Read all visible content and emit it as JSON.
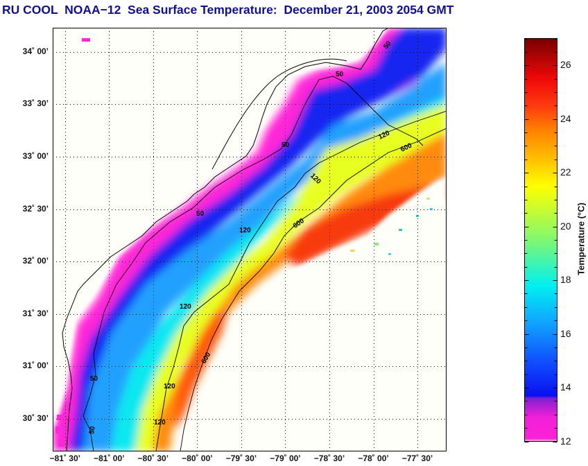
{
  "title": "RU COOL  NOAA−12  Sea Surface Temperature:  December 21, 2003 2054 GMT",
  "map": {
    "latitude_ticks": [
      {
        "value": 34.0,
        "label": "34˚ 00’"
      },
      {
        "value": 33.5,
        "label": "33˚ 30’"
      },
      {
        "value": 33.0,
        "label": "33˚ 00’"
      },
      {
        "value": 32.5,
        "label": "32˚ 30’"
      },
      {
        "value": 32.0,
        "label": "32˚ 00’"
      },
      {
        "value": 31.5,
        "label": "31˚ 30’"
      },
      {
        "value": 31.0,
        "label": "31˚ 00’"
      },
      {
        "value": 30.5,
        "label": "30˚ 30’"
      }
    ],
    "longitude_ticks": [
      {
        "value": -81.5,
        "label": "−81˚ 30’"
      },
      {
        "value": -81.0,
        "label": "−81˚ 00’"
      },
      {
        "value": -80.5,
        "label": "−80˚ 30’"
      },
      {
        "value": -80.0,
        "label": "−80˚ 00’"
      },
      {
        "value": -79.5,
        "label": "−79˚ 30’"
      },
      {
        "value": -79.0,
        "label": "−79˚ 00’"
      },
      {
        "value": -78.5,
        "label": "−78˚ 30’"
      },
      {
        "value": -78.0,
        "label": "−78˚ 00’"
      },
      {
        "value": -77.5,
        "label": "−77˚ 30’"
      }
    ],
    "lat_range": [
      30.19,
      34.23
    ],
    "lon_range": [
      -81.64,
      -77.17
    ],
    "grid": "dotted",
    "isobath_labels": [
      "50",
      "120",
      "600"
    ],
    "contour_label_instances": [
      {
        "text": "50"
      },
      {
        "text": "50"
      },
      {
        "text": "50"
      },
      {
        "text": "50"
      },
      {
        "text": "50"
      },
      {
        "text": "50"
      },
      {
        "text": "120"
      },
      {
        "text": "120"
      },
      {
        "text": "120"
      },
      {
        "text": "120"
      },
      {
        "text": "120"
      },
      {
        "text": "120"
      },
      {
        "text": "600"
      },
      {
        "text": "600"
      },
      {
        "text": "600"
      }
    ]
  },
  "colorbar": {
    "label": "Temperature (°C)",
    "min": 12,
    "max": 27,
    "ticks": [
      12,
      14,
      16,
      18,
      20,
      22,
      24,
      26
    ],
    "tick_labels": [
      "12",
      "14",
      "16",
      "18",
      "20",
      "22",
      "24",
      "26"
    ],
    "stops": [
      {
        "t": 12.0,
        "color": "#ffc8f0"
      },
      {
        "t": 12.1,
        "color": "#ff20d8"
      },
      {
        "t": 12.9,
        "color": "#f020d8"
      },
      {
        "t": 13.6,
        "color": "#8020d0"
      },
      {
        "t": 13.7,
        "color": "#0a10f0"
      },
      {
        "t": 15.0,
        "color": "#1050ff"
      },
      {
        "t": 16.5,
        "color": "#10a8ff"
      },
      {
        "t": 17.8,
        "color": "#00f0f0"
      },
      {
        "t": 19.5,
        "color": "#80f870"
      },
      {
        "t": 21.5,
        "color": "#ffff00"
      },
      {
        "t": 22.5,
        "color": "#ffc000"
      },
      {
        "t": 23.6,
        "color": "#ff8000"
      },
      {
        "t": 24.5,
        "color": "#ff3a10"
      },
      {
        "t": 25.5,
        "color": "#f00808"
      },
      {
        "t": 27.0,
        "color": "#780000"
      }
    ]
  },
  "colors": {
    "title": "#10108e",
    "frame": "#000000",
    "land_bg": "#fffff8"
  }
}
